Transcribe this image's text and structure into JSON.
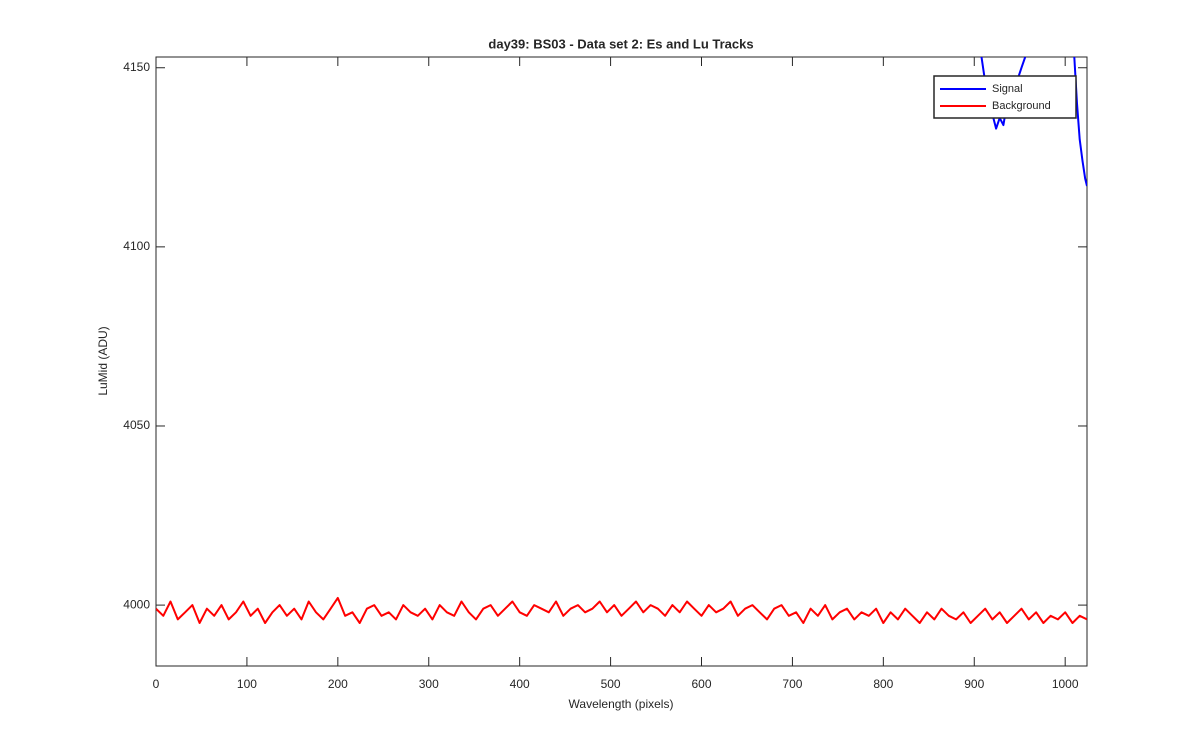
{
  "chart_data": {
    "type": "line",
    "title": "day39: BS03 - Data set 2: Es and Lu Tracks",
    "x_label": "Wavelength (pixels)",
    "y_label": "LuMid (ADU)",
    "xlim": [
      0,
      1024
    ],
    "ylim": [
      3983,
      4153
    ],
    "xticks": [
      0,
      100,
      200,
      300,
      400,
      500,
      600,
      700,
      800,
      900,
      1000
    ],
    "yticks": [
      4000,
      4050,
      4100,
      4150
    ],
    "grid": false,
    "legend": "northeast",
    "series": [
      {
        "name": "Signal",
        "color": "#0000ff",
        "x": [
          908,
          912,
          916,
          920,
          924,
          928,
          932,
          936,
          940,
          944,
          948,
          952,
          956,
          985,
          1010,
          1013,
          1016,
          1019,
          1022,
          1024
        ],
        "values": [
          4153,
          4146,
          4141,
          4137,
          4133,
          4136,
          4134,
          4140,
          4138,
          4144,
          4147,
          4150,
          4153,
          null,
          4153,
          4140,
          4130,
          4124,
          4119,
          4117
        ]
      },
      {
        "name": "Background",
        "color": "#ff0000",
        "x": [
          0,
          8,
          16,
          24,
          32,
          40,
          48,
          56,
          64,
          72,
          80,
          88,
          96,
          104,
          112,
          120,
          128,
          136,
          144,
          152,
          160,
          168,
          176,
          184,
          192,
          200,
          208,
          216,
          224,
          232,
          240,
          248,
          256,
          264,
          272,
          280,
          288,
          296,
          304,
          312,
          320,
          328,
          336,
          344,
          352,
          360,
          368,
          376,
          384,
          392,
          400,
          408,
          416,
          424,
          432,
          440,
          448,
          456,
          464,
          472,
          480,
          488,
          496,
          504,
          512,
          520,
          528,
          536,
          544,
          552,
          560,
          568,
          576,
          584,
          592,
          600,
          608,
          616,
          624,
          632,
          640,
          648,
          656,
          664,
          672,
          680,
          688,
          696,
          704,
          712,
          720,
          728,
          736,
          744,
          752,
          760,
          768,
          776,
          784,
          792,
          800,
          808,
          816,
          824,
          832,
          840,
          848,
          856,
          864,
          872,
          880,
          888,
          896,
          904,
          912,
          920,
          928,
          936,
          944,
          952,
          960,
          968,
          976,
          984,
          992,
          1000,
          1008,
          1016,
          1024
        ],
        "values": [
          3999,
          3997,
          4001,
          3996,
          3998,
          4000,
          3995,
          3999,
          3997,
          4000,
          3996,
          3998,
          4001,
          3997,
          3999,
          3995,
          3998,
          4000,
          3997,
          3999,
          3996,
          4001,
          3998,
          3996,
          3999,
          4002,
          3997,
          3998,
          3995,
          3999,
          4000,
          3997,
          3998,
          3996,
          4000,
          3998,
          3997,
          3999,
          3996,
          4000,
          3998,
          3997,
          4001,
          3998,
          3996,
          3999,
          4000,
          3997,
          3999,
          4001,
          3998,
          3997,
          4000,
          3999,
          3998,
          4001,
          3997,
          3999,
          4000,
          3998,
          3999,
          4001,
          3998,
          4000,
          3997,
          3999,
          4001,
          3998,
          4000,
          3999,
          3997,
          4000,
          3998,
          4001,
          3999,
          3997,
          4000,
          3998,
          3999,
          4001,
          3997,
          3999,
          4000,
          3998,
          3996,
          3999,
          4000,
          3997,
          3998,
          3995,
          3999,
          3997,
          4000,
          3996,
          3998,
          3999,
          3996,
          3998,
          3997,
          3999,
          3995,
          3998,
          3996,
          3999,
          3997,
          3995,
          3998,
          3996,
          3999,
          3997,
          3996,
          3998,
          3995,
          3997,
          3999,
          3996,
          3998,
          3995,
          3997,
          3999,
          3996,
          3998,
          3995,
          3997,
          3996,
          3998,
          3995,
          3997,
          3996
        ]
      }
    ]
  }
}
